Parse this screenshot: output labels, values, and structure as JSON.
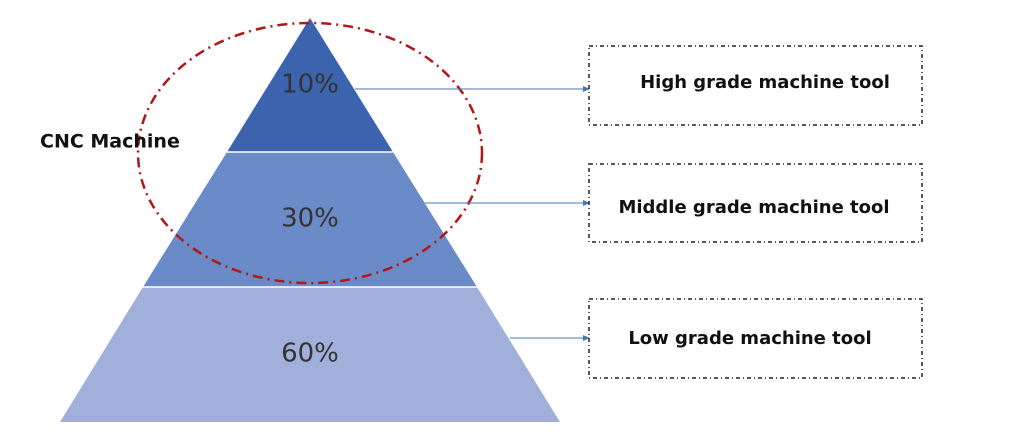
{
  "group_label": "CNC Machine",
  "tiers": [
    {
      "percent": "10%",
      "label": "High grade machine tool"
    },
    {
      "percent": "30%",
      "label": "Middle grade machine tool"
    },
    {
      "percent": "60%",
      "label": "Low grade machine tool"
    }
  ]
}
